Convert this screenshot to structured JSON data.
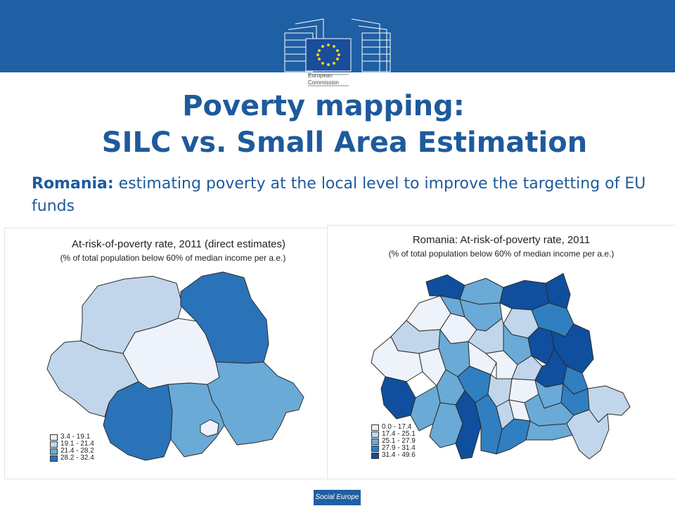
{
  "header": {
    "logo_line1": "European",
    "logo_line2": "Commission",
    "band_color": "#1f5fa3"
  },
  "slide": {
    "title_line1": "Poverty mapping:",
    "title_line2": "SILC vs. Small Area Estimation",
    "subtitle_bold": "Romania:",
    "subtitle_text": " estimating poverty at the local level to improve the targetting of EU funds"
  },
  "map_left": {
    "title": "At-risk-of-poverty rate, 2011 (direct estimates)",
    "subtitle": "(% of total population below 60% of median income per a.e.)",
    "legend": [
      {
        "label": "3.4 - 19.1",
        "color": "#eef3fb"
      },
      {
        "label": "19.1 - 21.4",
        "color": "#c1d6ea"
      },
      {
        "label": "21.4 - 28.2",
        "color": "#6aaad6"
      },
      {
        "label": "28.2 - 32.4",
        "color": "#2a73b8"
      }
    ]
  },
  "map_right": {
    "title": "Romania: At-risk-of-poverty rate, 2011",
    "subtitle": "(% of total population below 60% of median income per a.e.)",
    "legend": [
      {
        "label": "0.0 - 17.4",
        "color": "#eef3fb"
      },
      {
        "label": "17.4 - 25.1",
        "color": "#c1d6ea"
      },
      {
        "label": "25.1 - 27.9",
        "color": "#6aaad6"
      },
      {
        "label": "27.9 - 31.4",
        "color": "#2f7fc1"
      },
      {
        "label": "31.4 - 49.6",
        "color": "#0f4f9e"
      }
    ]
  },
  "footer": {
    "label": "Social Europe"
  }
}
